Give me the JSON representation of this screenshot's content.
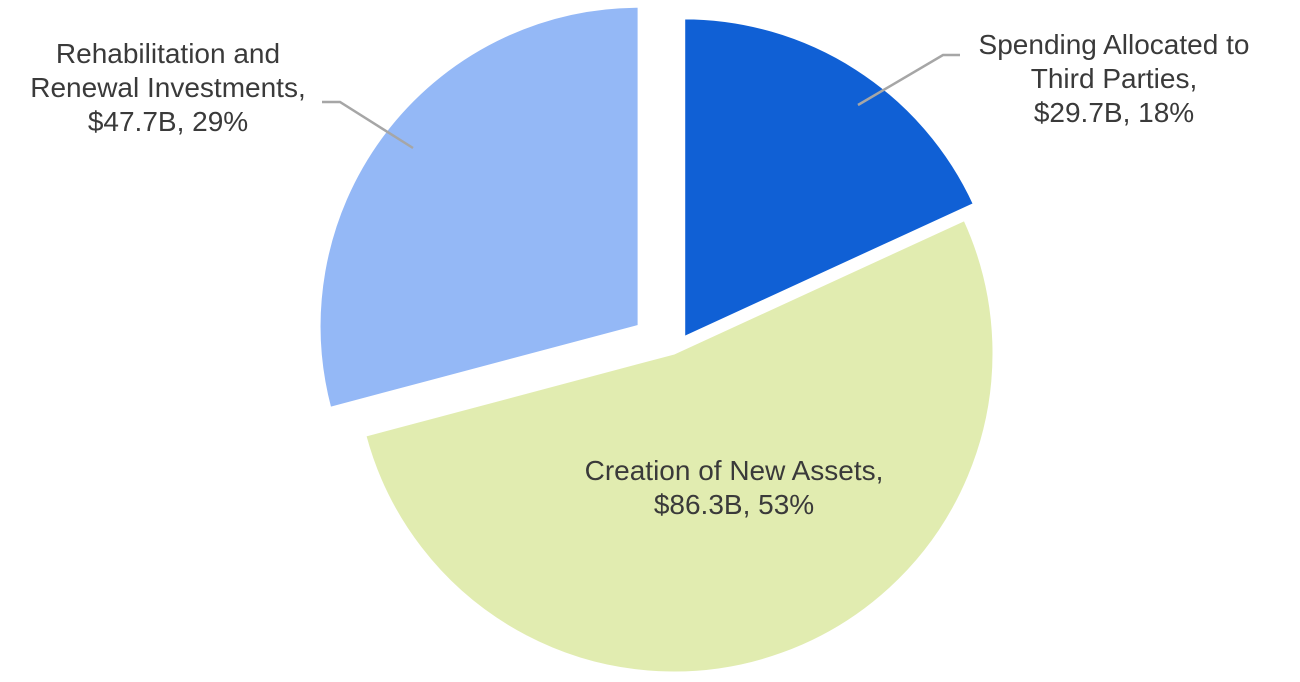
{
  "chart_data": {
    "type": "pie",
    "title": "",
    "unit": "$B",
    "exploded": true,
    "legend": "none",
    "slices": [
      {
        "name": "Spending Allocated to Third Parties",
        "value": 29.7,
        "percent": 18,
        "color": "#1060d5",
        "label_lines": [
          "Spending Allocated to",
          "Third Parties,",
          "$29.7B, 18%"
        ]
      },
      {
        "name": "Creation of New Assets",
        "value": 86.3,
        "percent": 53,
        "color": "#e1ecb0",
        "label_lines": [
          "Creation of New Assets,",
          "$86.3B, 53%"
        ]
      },
      {
        "name": "Rehabilitation and Renewal Investments",
        "value": 47.7,
        "percent": 29,
        "color": "#94b8f6",
        "label_lines": [
          "Rehabilitation and",
          "Renewal Investments,",
          "$47.7B, 29%"
        ]
      }
    ]
  }
}
